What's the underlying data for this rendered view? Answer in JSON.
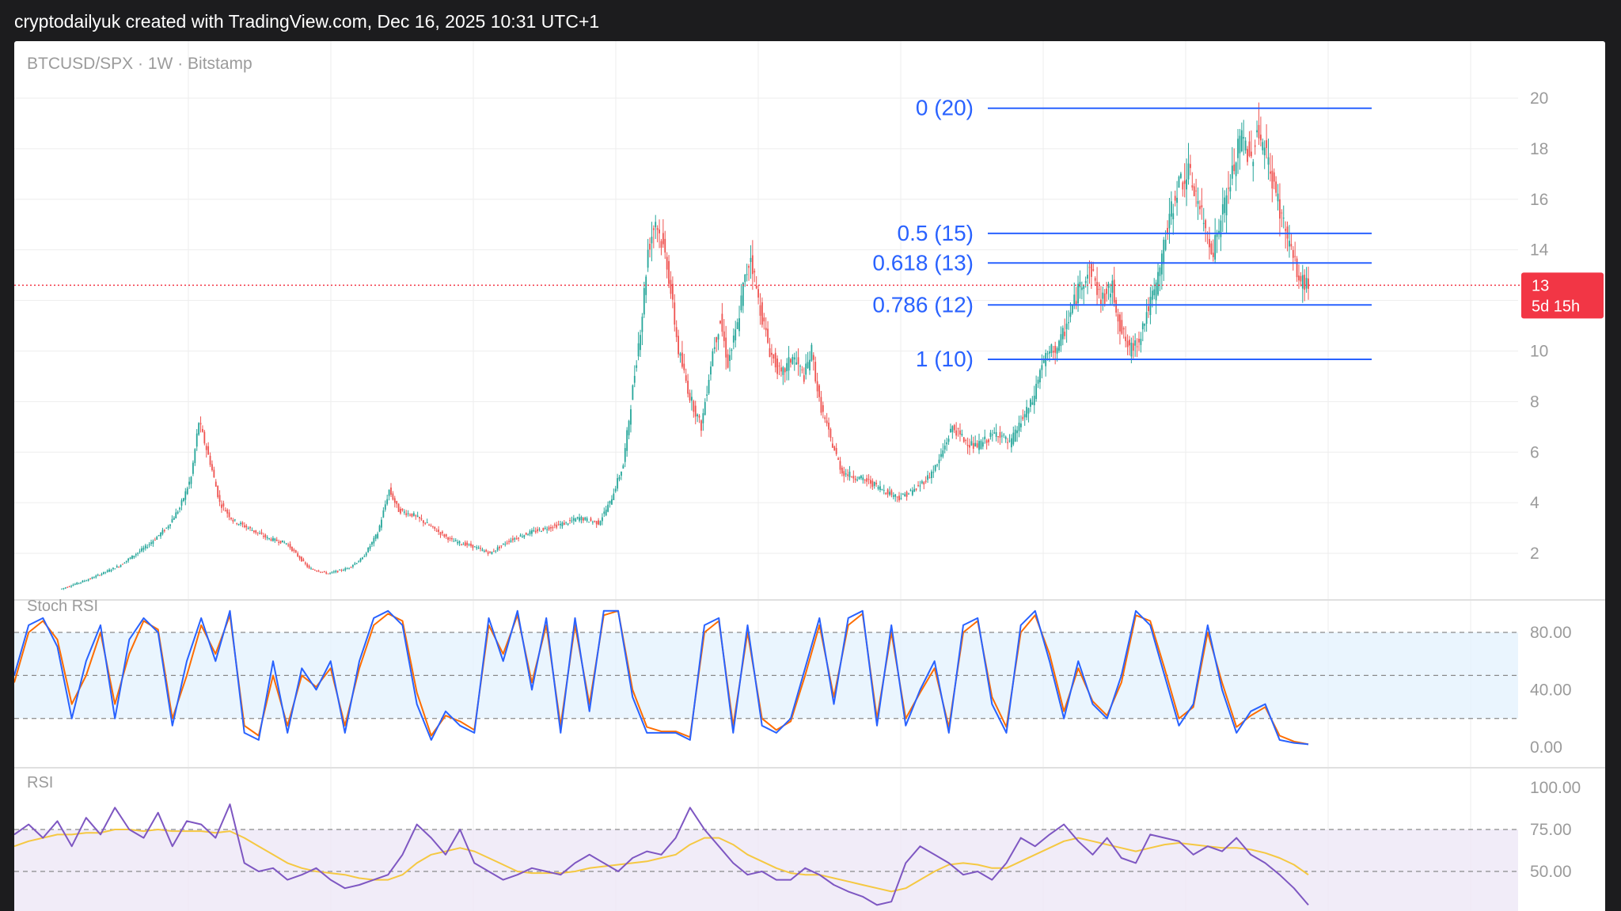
{
  "header": {
    "text": "cryptodailyuk created with TradingView.com, Dec 16, 2025 10:31 UTC+1"
  },
  "colors": {
    "up": "#26a69a",
    "down": "#ef5350",
    "fib": "#2962ff",
    "k_line": "#2962ff",
    "d_line": "#ff6d00",
    "rsi_line": "#7e57c2",
    "rsi_ma": "#f5c842",
    "price_badge": "#f23645",
    "grid": "#eeeeee",
    "axis_text": "#9b9b9b"
  },
  "chart_data": [
    {
      "type": "candlestick",
      "title": "BTCUSD/SPX · 1W · Bitstamp",
      "ylim": [
        0.5,
        21
      ],
      "y_ticks": [
        2,
        4,
        6,
        8,
        10,
        12,
        14,
        16,
        18,
        20
      ],
      "y_tick_labels": [
        "2",
        "4",
        "6",
        "8",
        "10",
        "",
        "14",
        "16",
        "18",
        "20"
      ],
      "grid": true,
      "points": [
        [
          0,
          0.6
        ],
        [
          15,
          1.0
        ],
        [
          30,
          1.5
        ],
        [
          45,
          2.3
        ],
        [
          55,
          3.0
        ],
        [
          62,
          3.8
        ],
        [
          68,
          5.0
        ],
        [
          72,
          7.2
        ],
        [
          78,
          5.6
        ],
        [
          83,
          4.0
        ],
        [
          90,
          3.3
        ],
        [
          98,
          3.0
        ],
        [
          108,
          2.6
        ],
        [
          118,
          2.4
        ],
        [
          130,
          1.4
        ],
        [
          140,
          1.2
        ],
        [
          150,
          1.4
        ],
        [
          158,
          1.8
        ],
        [
          166,
          2.8
        ],
        [
          172,
          4.5
        ],
        [
          177,
          3.7
        ],
        [
          185,
          3.5
        ],
        [
          195,
          3.0
        ],
        [
          205,
          2.5
        ],
        [
          215,
          2.3
        ],
        [
          225,
          2.0
        ],
        [
          235,
          2.5
        ],
        [
          245,
          2.8
        ],
        [
          255,
          3.0
        ],
        [
          265,
          3.2
        ],
        [
          272,
          3.4
        ],
        [
          282,
          3.2
        ],
        [
          288,
          4.0
        ],
        [
          295,
          5.5
        ],
        [
          300,
          8.5
        ],
        [
          305,
          11.5
        ],
        [
          308,
          14.0
        ],
        [
          312,
          15.2
        ],
        [
          318,
          13.5
        ],
        [
          324,
          10.0
        ],
        [
          330,
          8.2
        ],
        [
          336,
          7.0
        ],
        [
          342,
          10.0
        ],
        [
          346,
          11.2
        ],
        [
          350,
          9.5
        ],
        [
          355,
          11.0
        ],
        [
          358,
          12.5
        ],
        [
          362,
          13.8
        ],
        [
          366,
          12.0
        ],
        [
          372,
          10.0
        ],
        [
          378,
          9.0
        ],
        [
          384,
          9.8
        ],
        [
          390,
          9.0
        ],
        [
          394,
          10.0
        ],
        [
          398,
          8.0
        ],
        [
          404,
          6.5
        ],
        [
          410,
          5.2
        ],
        [
          418,
          5.0
        ],
        [
          425,
          4.8
        ],
        [
          432,
          4.5
        ],
        [
          440,
          4.2
        ],
        [
          448,
          4.5
        ],
        [
          455,
          5.0
        ],
        [
          460,
          5.5
        ],
        [
          468,
          7.0
        ],
        [
          474,
          6.5
        ],
        [
          480,
          6.2
        ],
        [
          486,
          6.5
        ],
        [
          492,
          6.8
        ],
        [
          498,
          6.3
        ],
        [
          504,
          7.2
        ],
        [
          510,
          8.0
        ],
        [
          515,
          9.5
        ],
        [
          520,
          10.0
        ],
        [
          524,
          10.2
        ],
        [
          530,
          11.5
        ],
        [
          536,
          12.8
        ],
        [
          541,
          13.2
        ],
        [
          546,
          12.0
        ],
        [
          552,
          12.5
        ],
        [
          556,
          11.0
        ],
        [
          561,
          10.0
        ],
        [
          566,
          10.5
        ],
        [
          570,
          11.5
        ],
        [
          575,
          12.5
        ],
        [
          580,
          14.5
        ],
        [
          586,
          16.5
        ],
        [
          592,
          17.0
        ],
        [
          596,
          16.2
        ],
        [
          600,
          15.0
        ],
        [
          605,
          14.0
        ],
        [
          610,
          15.5
        ],
        [
          615,
          17.0
        ],
        [
          620,
          18.5
        ],
        [
          625,
          17.5
        ],
        [
          628,
          18.8
        ],
        [
          632,
          18.0
        ],
        [
          637,
          16.5
        ],
        [
          642,
          15.0
        ],
        [
          646,
          14.0
        ],
        [
          650,
          12.8
        ],
        [
          655,
          12.6
        ]
      ],
      "current_price": "13",
      "countdown": "5d 15h",
      "fib_levels": [
        {
          "label": "0 (20)",
          "value": 19.6
        },
        {
          "label": "0.5 (15)",
          "value": 14.65
        },
        {
          "label": "0.618 (13)",
          "value": 13.48
        },
        {
          "label": "0.786 (12)",
          "value": 11.82
        },
        {
          "label": "1 (10)",
          "value": 9.67
        }
      ]
    },
    {
      "type": "line",
      "title": "Stoch RSI",
      "ylim": [
        0,
        100
      ],
      "y_ticks": [
        0,
        40,
        80
      ],
      "y_tick_labels": [
        "0.00",
        "40.00",
        "80.00"
      ],
      "bands": [
        20,
        50,
        80
      ],
      "series": [
        {
          "key": "k",
          "values": [
            50,
            85,
            90,
            70,
            20,
            60,
            85,
            20,
            75,
            90,
            80,
            15,
            60,
            90,
            60,
            95,
            10,
            5,
            60,
            10,
            55,
            40,
            60,
            10,
            60,
            90,
            95,
            85,
            30,
            5,
            25,
            15,
            10,
            90,
            60,
            95,
            40,
            90,
            10,
            90,
            25,
            95,
            95,
            35,
            10,
            10,
            10,
            5,
            85,
            90,
            10,
            85,
            15,
            10,
            20,
            55,
            90,
            30,
            90,
            95,
            15,
            85,
            15,
            40,
            60,
            10,
            85,
            90,
            30,
            10,
            85,
            95,
            60,
            20,
            60,
            30,
            20,
            50,
            95,
            85,
            50,
            15,
            30,
            85,
            40,
            10,
            25,
            30,
            5,
            3,
            2
          ]
        },
        {
          "key": "d",
          "values": [
            45,
            80,
            88,
            75,
            30,
            50,
            80,
            30,
            65,
            88,
            82,
            20,
            50,
            85,
            65,
            92,
            15,
            8,
            50,
            15,
            50,
            42,
            55,
            15,
            55,
            85,
            93,
            88,
            38,
            8,
            22,
            18,
            12,
            85,
            65,
            92,
            45,
            85,
            15,
            85,
            30,
            92,
            95,
            40,
            14,
            11,
            11,
            7,
            80,
            88,
            15,
            80,
            20,
            12,
            18,
            50,
            85,
            35,
            85,
            93,
            20,
            80,
            20,
            38,
            55,
            14,
            80,
            88,
            35,
            14,
            80,
            92,
            65,
            25,
            55,
            32,
            22,
            45,
            92,
            88,
            55,
            20,
            28,
            80,
            45,
            14,
            22,
            28,
            8,
            4,
            2
          ]
        }
      ]
    },
    {
      "type": "line",
      "title": "RSI",
      "ylim": [
        20,
        100
      ],
      "y_ticks": [
        50,
        75,
        100
      ],
      "y_tick_labels": [
        "50.00",
        "75.00",
        "100.00"
      ],
      "bands": [
        50,
        75
      ],
      "series": [
        {
          "key": "rsi",
          "values": [
            72,
            78,
            70,
            80,
            65,
            82,
            72,
            88,
            75,
            70,
            85,
            65,
            80,
            78,
            70,
            90,
            55,
            50,
            52,
            45,
            48,
            52,
            45,
            40,
            42,
            45,
            48,
            60,
            78,
            70,
            60,
            75,
            55,
            50,
            45,
            48,
            52,
            50,
            48,
            55,
            60,
            55,
            50,
            58,
            62,
            60,
            70,
            88,
            75,
            65,
            55,
            48,
            50,
            45,
            45,
            52,
            48,
            42,
            38,
            35,
            30,
            32,
            55,
            65,
            60,
            55,
            48,
            50,
            45,
            55,
            70,
            65,
            72,
            78,
            68,
            60,
            70,
            58,
            55,
            72,
            70,
            68,
            60,
            65,
            62,
            70,
            60,
            55,
            48,
            40,
            30
          ]
        },
        {
          "key": "rsi_ma",
          "values": [
            65,
            68,
            70,
            72,
            72,
            73,
            73,
            75,
            75,
            74,
            75,
            74,
            74,
            74,
            73,
            74,
            70,
            65,
            60,
            55,
            52,
            50,
            49,
            48,
            46,
            45,
            45,
            48,
            55,
            60,
            62,
            64,
            62,
            58,
            54,
            50,
            49,
            49,
            49,
            50,
            52,
            53,
            54,
            55,
            56,
            58,
            60,
            66,
            70,
            70,
            66,
            60,
            56,
            52,
            49,
            48,
            48,
            46,
            44,
            42,
            40,
            38,
            40,
            45,
            50,
            54,
            55,
            54,
            52,
            52,
            56,
            60,
            64,
            68,
            70,
            68,
            66,
            64,
            62,
            64,
            66,
            67,
            66,
            65,
            64,
            64,
            63,
            61,
            58,
            54,
            48
          ]
        }
      ]
    }
  ]
}
